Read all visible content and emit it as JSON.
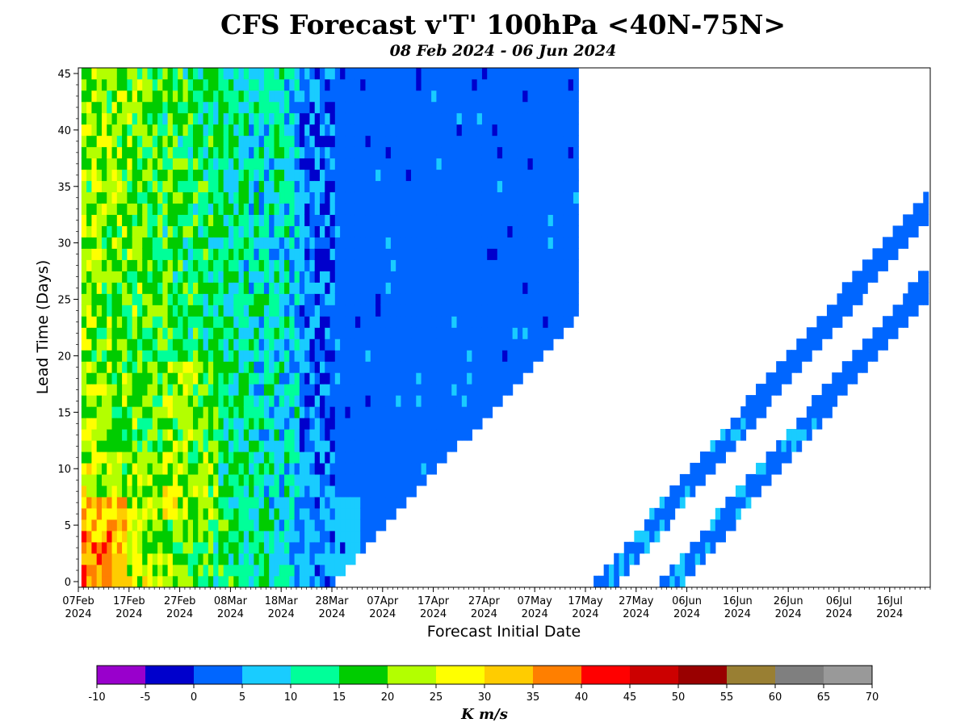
{
  "chart_data": {
    "type": "heatmap",
    "title": "CFS Forecast v'T' 100hPa <40N-75N>",
    "subtitle": "08 Feb 2024 - 06 Jun 2024",
    "xlabel": "Forecast Initial Date",
    "ylabel": "Lead Time (Days)",
    "x_start_date": "2024-02-07",
    "x_end_date": "2024-07-24",
    "x_ticks": [
      {
        "date": "2024-02-07",
        "label": [
          "07Feb",
          "2024"
        ]
      },
      {
        "date": "2024-02-17",
        "label": [
          "17Feb",
          "2024"
        ]
      },
      {
        "date": "2024-02-27",
        "label": [
          "27Feb",
          "2024"
        ]
      },
      {
        "date": "2024-03-08",
        "label": [
          "08Mar",
          "2024"
        ]
      },
      {
        "date": "2024-03-18",
        "label": [
          "18Mar",
          "2024"
        ]
      },
      {
        "date": "2024-03-28",
        "label": [
          "28Mar",
          "2024"
        ]
      },
      {
        "date": "2024-04-07",
        "label": [
          "07Apr",
          "2024"
        ]
      },
      {
        "date": "2024-04-17",
        "label": [
          "17Apr",
          "2024"
        ]
      },
      {
        "date": "2024-04-27",
        "label": [
          "27Apr",
          "2024"
        ]
      },
      {
        "date": "2024-05-07",
        "label": [
          "07May",
          "2024"
        ]
      },
      {
        "date": "2024-05-17",
        "label": [
          "17May",
          "2024"
        ]
      },
      {
        "date": "2024-05-27",
        "label": [
          "27May",
          "2024"
        ]
      },
      {
        "date": "2024-06-06",
        "label": [
          "06Jun",
          "2024"
        ]
      },
      {
        "date": "2024-06-16",
        "label": [
          "16Jun",
          "2024"
        ]
      },
      {
        "date": "2024-06-26",
        "label": [
          "26Jun",
          "2024"
        ]
      },
      {
        "date": "2024-07-06",
        "label": [
          "06Jul",
          "2024"
        ]
      },
      {
        "date": "2024-07-16",
        "label": [
          "16Jul",
          "2024"
        ]
      }
    ],
    "y_ticks": [
      0,
      5,
      10,
      15,
      20,
      25,
      30,
      35,
      40,
      45
    ],
    "ylim": [
      -0.5,
      45.5
    ],
    "grid": false,
    "colorbar": {
      "label": "K m/s",
      "levels": [
        -10,
        -5,
        0,
        5,
        10,
        15,
        20,
        25,
        30,
        35,
        40,
        45,
        50,
        55,
        60,
        65,
        70
      ],
      "tick_labels": [
        "-10",
        "-5",
        "0",
        "5",
        "10",
        "15",
        "20",
        "25",
        "30",
        "35",
        "40",
        "45",
        "50",
        "55",
        "60",
        "65",
        "70"
      ],
      "colors": [
        "#9900cc",
        "#0000cc",
        "#0066ff",
        "#19ccff",
        "#00ff99",
        "#00cc00",
        "#b3ff00",
        "#ffff00",
        "#ffcc00",
        "#ff7f00",
        "#ff0000",
        "#cc0000",
        "#990000",
        "#997f33",
        "#7f7f7f",
        "#999999"
      ]
    },
    "band_1": {
      "description_init_dates": "2024-02-08 to 2024-03-28",
      "pattern": "values decrease with forecast initial date; warmest (25-40 K m/s) near 08Feb-27Feb short leads, 5-15 K m/s late March",
      "sample_values": [
        {
          "init": "2024-02-14",
          "lead": 5,
          "value": 36
        },
        {
          "init": "2024-02-15",
          "lead": 2,
          "value": 38
        },
        {
          "init": "2024-02-20",
          "lead": 15,
          "value": 24
        },
        {
          "init": "2024-03-01",
          "lead": 20,
          "value": 33
        },
        {
          "init": "2024-03-10",
          "lead": 5,
          "value": 17
        },
        {
          "init": "2024-03-20",
          "lead": 10,
          "value": 6
        },
        {
          "init": "2024-04-15",
          "lead": 30,
          "value": 3
        }
      ]
    },
    "band_2": {
      "init_dates": "2024-05-20 to 2024-06-25",
      "value_range": [
        0,
        10
      ]
    },
    "band_3": {
      "init_dates": "2024-06-02 to 2024-07-23",
      "value_range": [
        0,
        10
      ]
    }
  }
}
